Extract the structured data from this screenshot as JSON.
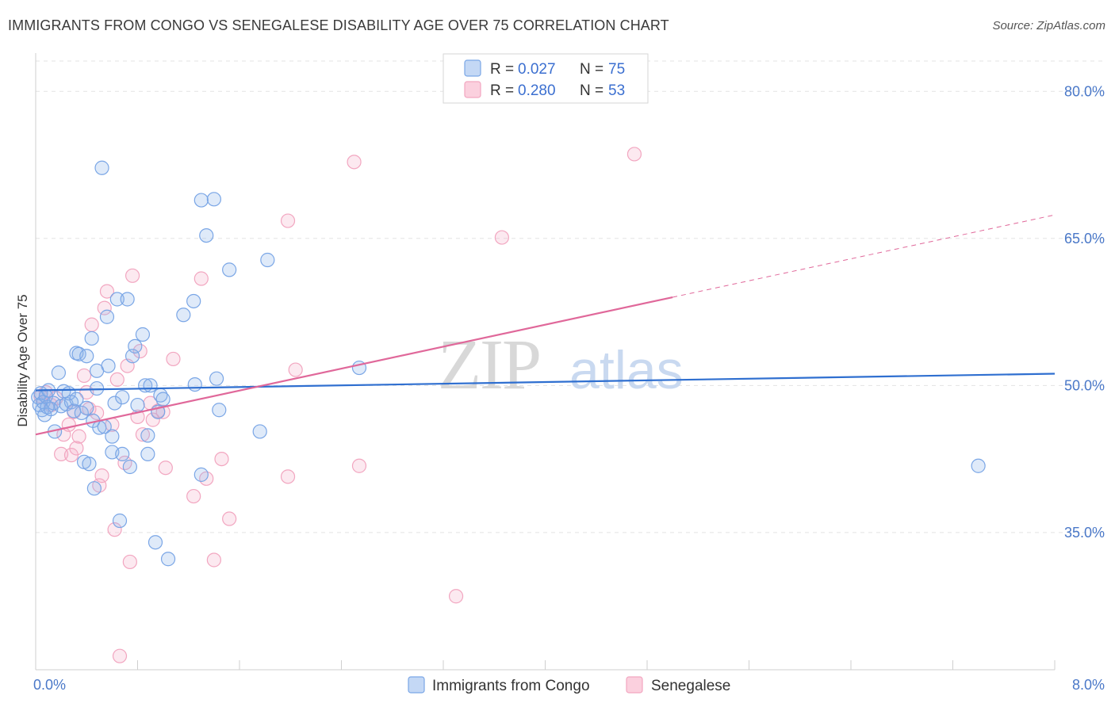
{
  "title": "IMMIGRANTS FROM CONGO VS SENEGALESE DISABILITY AGE OVER 75 CORRELATION CHART",
  "source": "Source: ZipAtlas.com",
  "chart_data": {
    "type": "scatter",
    "title": "IMMIGRANTS FROM CONGO VS SENEGALESE DISABILITY AGE OVER 75 CORRELATION CHART",
    "ylabel": "Disability Age Over 75",
    "xlim": [
      0.0,
      8.0
    ],
    "ylim": [
      21.0,
      83.5
    ],
    "y_ticks": [
      {
        "value": 80.0,
        "label": "80.0%"
      },
      {
        "value": 65.0,
        "label": "65.0%"
      },
      {
        "value": 50.0,
        "label": "50.0%"
      },
      {
        "value": 35.0,
        "label": "35.0%"
      }
    ],
    "x_tick_labels": {
      "left": "0.0%",
      "right": "8.0%"
    },
    "legend": [
      {
        "r_label": "R =",
        "r_value": "0.027",
        "n_label": "N =",
        "n_value": "75"
      },
      {
        "r_label": "R =",
        "r_value": "0.280",
        "n_label": "N =",
        "n_value": "53"
      }
    ],
    "watermark": {
      "zip": "ZIP",
      "atlas": "atlas"
    },
    "series": [
      {
        "name": "Immigrants from Congo",
        "color": "#7aa6e6",
        "line_color": "#2f6fd0",
        "trend": {
          "x0": 0.0,
          "y0": 49.5,
          "x1": 8.0,
          "y1": 51.2
        },
        "points": [
          [
            0.02,
            48.8
          ],
          [
            0.03,
            48.0
          ],
          [
            0.04,
            49.2
          ],
          [
            0.05,
            47.5
          ],
          [
            0.06,
            48.3
          ],
          [
            0.07,
            47.0
          ],
          [
            0.08,
            48.9
          ],
          [
            0.09,
            47.8
          ],
          [
            0.1,
            49.5
          ],
          [
            0.12,
            47.6
          ],
          [
            0.14,
            48.2
          ],
          [
            0.15,
            45.3
          ],
          [
            0.18,
            51.3
          ],
          [
            0.2,
            47.9
          ],
          [
            0.22,
            49.4
          ],
          [
            0.24,
            48.1
          ],
          [
            0.26,
            49.2
          ],
          [
            0.28,
            48.3
          ],
          [
            0.3,
            47.4
          ],
          [
            0.32,
            48.6
          ],
          [
            0.32,
            53.3
          ],
          [
            0.34,
            53.2
          ],
          [
            0.36,
            47.2
          ],
          [
            0.38,
            42.2
          ],
          [
            0.4,
            47.7
          ],
          [
            0.4,
            53.0
          ],
          [
            0.42,
            42.0
          ],
          [
            0.44,
            54.8
          ],
          [
            0.45,
            46.4
          ],
          [
            0.46,
            39.5
          ],
          [
            0.48,
            49.7
          ],
          [
            0.48,
            51.5
          ],
          [
            0.5,
            45.7
          ],
          [
            0.52,
            72.2
          ],
          [
            0.54,
            45.8
          ],
          [
            0.56,
            57.0
          ],
          [
            0.57,
            52.0
          ],
          [
            0.6,
            44.8
          ],
          [
            0.6,
            43.2
          ],
          [
            0.62,
            48.2
          ],
          [
            0.64,
            58.8
          ],
          [
            0.66,
            36.2
          ],
          [
            0.68,
            48.8
          ],
          [
            0.68,
            43.0
          ],
          [
            0.72,
            58.8
          ],
          [
            0.74,
            41.7
          ],
          [
            0.76,
            53.0
          ],
          [
            0.78,
            54.0
          ],
          [
            0.8,
            48.0
          ],
          [
            0.84,
            55.2
          ],
          [
            0.86,
            50.0
          ],
          [
            0.88,
            43.0
          ],
          [
            0.88,
            44.9
          ],
          [
            0.9,
            50.0
          ],
          [
            0.94,
            34.0
          ],
          [
            0.96,
            47.3
          ],
          [
            0.98,
            49.0
          ],
          [
            1.0,
            48.6
          ],
          [
            1.04,
            32.3
          ],
          [
            1.16,
            57.2
          ],
          [
            1.24,
            58.6
          ],
          [
            1.25,
            50.1
          ],
          [
            1.3,
            40.9
          ],
          [
            1.3,
            68.9
          ],
          [
            1.34,
            65.3
          ],
          [
            1.4,
            69.0
          ],
          [
            1.42,
            50.7
          ],
          [
            1.44,
            47.5
          ],
          [
            1.52,
            61.8
          ],
          [
            1.76,
            45.3
          ],
          [
            1.82,
            62.8
          ],
          [
            2.54,
            51.8
          ],
          [
            7.4,
            41.8
          ]
        ]
      },
      {
        "name": "Senegalese",
        "color": "#f2a6c0",
        "line_color": "#e0689a",
        "trend": {
          "x0": 0.0,
          "y0": 45.0,
          "x1": 5.0,
          "y1": 59.0
        },
        "trend_dashed": {
          "x0": 5.0,
          "y0": 59.0,
          "x1": 8.0,
          "y1": 67.4
        },
        "points": [
          [
            0.04,
            48.9
          ],
          [
            0.08,
            49.3
          ],
          [
            0.12,
            48.0
          ],
          [
            0.16,
            48.7
          ],
          [
            0.2,
            43.0
          ],
          [
            0.22,
            45.0
          ],
          [
            0.26,
            46.0
          ],
          [
            0.28,
            42.9
          ],
          [
            0.3,
            47.3
          ],
          [
            0.32,
            43.6
          ],
          [
            0.34,
            44.8
          ],
          [
            0.38,
            51.0
          ],
          [
            0.4,
            49.3
          ],
          [
            0.42,
            47.6
          ],
          [
            0.44,
            56.2
          ],
          [
            0.48,
            47.2
          ],
          [
            0.5,
            39.8
          ],
          [
            0.52,
            40.8
          ],
          [
            0.54,
            57.9
          ],
          [
            0.56,
            59.6
          ],
          [
            0.6,
            46.0
          ],
          [
            0.62,
            35.3
          ],
          [
            0.64,
            50.6
          ],
          [
            0.66,
            22.4
          ],
          [
            0.7,
            42.1
          ],
          [
            0.72,
            52.0
          ],
          [
            0.74,
            32.0
          ],
          [
            0.76,
            61.2
          ],
          [
            0.8,
            46.8
          ],
          [
            0.82,
            53.5
          ],
          [
            0.84,
            45.0
          ],
          [
            0.9,
            48.2
          ],
          [
            0.92,
            46.5
          ],
          [
            0.96,
            47.4
          ],
          [
            1.0,
            47.3
          ],
          [
            1.02,
            41.6
          ],
          [
            1.08,
            52.7
          ],
          [
            1.24,
            38.7
          ],
          [
            1.3,
            60.9
          ],
          [
            1.34,
            40.5
          ],
          [
            1.4,
            32.2
          ],
          [
            1.46,
            42.5
          ],
          [
            1.52,
            36.4
          ],
          [
            1.98,
            40.7
          ],
          [
            1.98,
            66.8
          ],
          [
            2.04,
            51.6
          ],
          [
            2.5,
            72.8
          ],
          [
            2.54,
            41.8
          ],
          [
            3.3,
            28.5
          ],
          [
            3.66,
            65.1
          ],
          [
            4.7,
            73.6
          ]
        ]
      }
    ]
  },
  "bottom_legend": [
    {
      "label": "Immigrants from Congo"
    },
    {
      "label": "Senegalese"
    }
  ]
}
